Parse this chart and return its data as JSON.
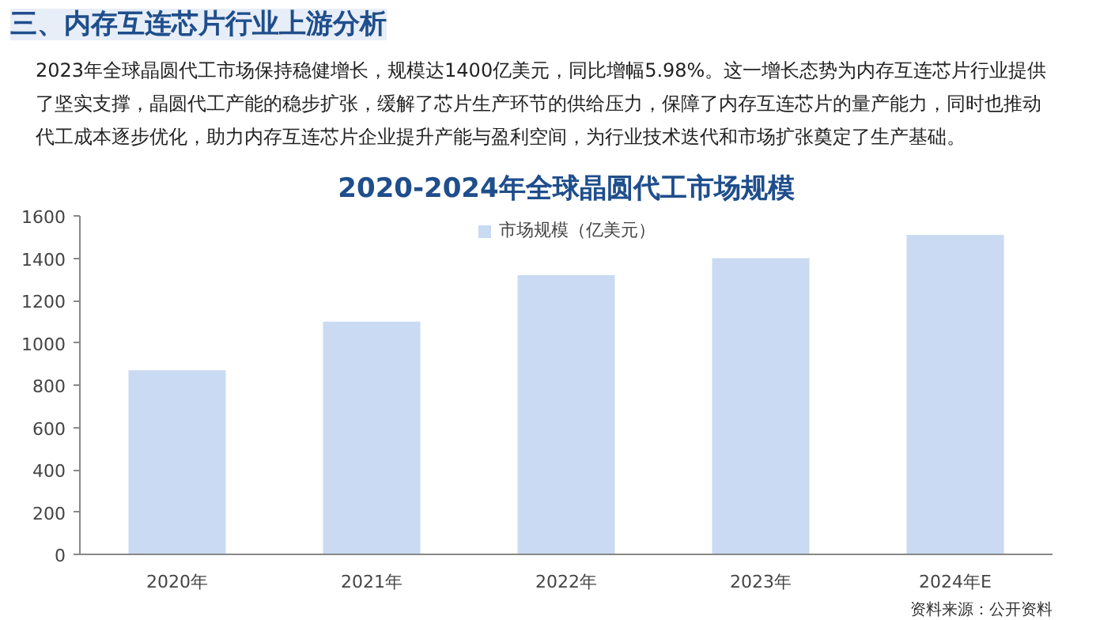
{
  "chart_data": {
    "type": "bar",
    "title": "2020-2024年全球晶圆代工市场规模",
    "annotations": [
      "三、内存互连芯片行业上游分析",
      "2023年全球晶圆代工市场保持稳健增长，规模达1400亿美元，同比增幅5.98%。这一增长态势为内存互连芯片行业提供了坚实支撑，晶圆代工产能的稳步扩张，缓解了芯片生产环节的供给压力，保障了内存互连芯片的量产能力，同时也推动代工成本逐步优化，助力内存互连芯片企业提升产能与盈利空间，为行业技术迭代和市场扩张奠定了生产基础。",
      "资料来源：公开资料"
    ],
    "categories": [
      "2020年",
      "2021年",
      "2022年",
      "2023年",
      "2024年E"
    ],
    "series": [
      {
        "name": "市场规模（亿美元）",
        "color": "#c9daf2",
        "values": [
          870,
          1100,
          1320,
          1400,
          1510
        ]
      }
    ],
    "ylim": [
      0,
      1600
    ],
    "yticks": [
      0,
      200,
      400,
      600,
      800,
      1000,
      1200,
      1400,
      1600
    ],
    "grid": false,
    "legend": "top"
  }
}
